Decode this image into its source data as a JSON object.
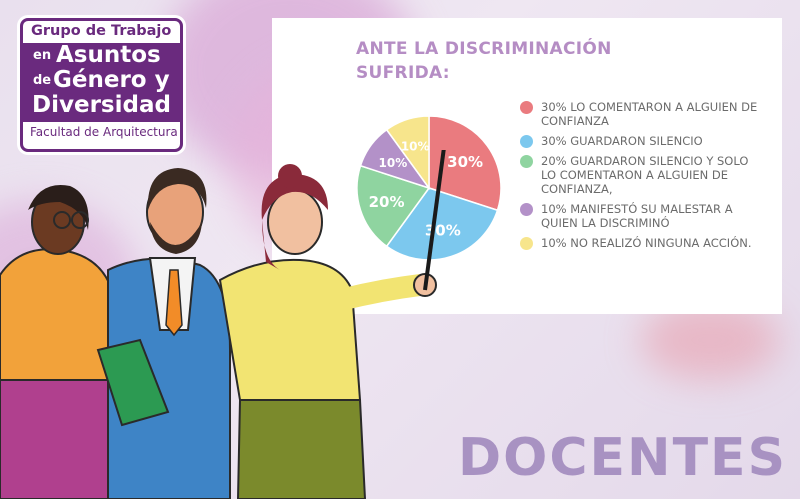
{
  "logo": {
    "line1": "Grupo de Trabajo",
    "en": "en",
    "asuntos": "Asuntos",
    "de": "de",
    "genero": "Género y",
    "diversidad": "Diversidad",
    "facultad": "Facultad de Arquitectura"
  },
  "footer_word": "DOCENTES",
  "chart_data": {
    "type": "pie",
    "title": "ANTE LA DISCRIMINACIÓN SUFRIDA:",
    "slices": [
      {
        "label": "30% LO COMENTARON A ALGUIEN DE CONFIANZA",
        "value": 30,
        "display": "30%",
        "color": "#ea7b7f"
      },
      {
        "label": "30% GUARDARON SILENCIO",
        "value": 30,
        "display": "30%",
        "color": "#7cc8ee"
      },
      {
        "label": "20% GUARDARON SILENCIO Y SOLO LO COMENTARON A ALGUIEN DE CONFIANZA,",
        "value": 20,
        "display": "20%",
        "color": "#8fd4a0"
      },
      {
        "label": "10% MANIFESTÓ SU MALESTAR A QUIEN LA DISCRIMINÓ",
        "value": 10,
        "display": "10%",
        "color": "#b391c8"
      },
      {
        "label": "10% NO REALIZÓ NINGUNA ACCIÓN.",
        "value": 10,
        "display": "10%",
        "color": "#f7e58c"
      }
    ],
    "legend_position": "right"
  }
}
